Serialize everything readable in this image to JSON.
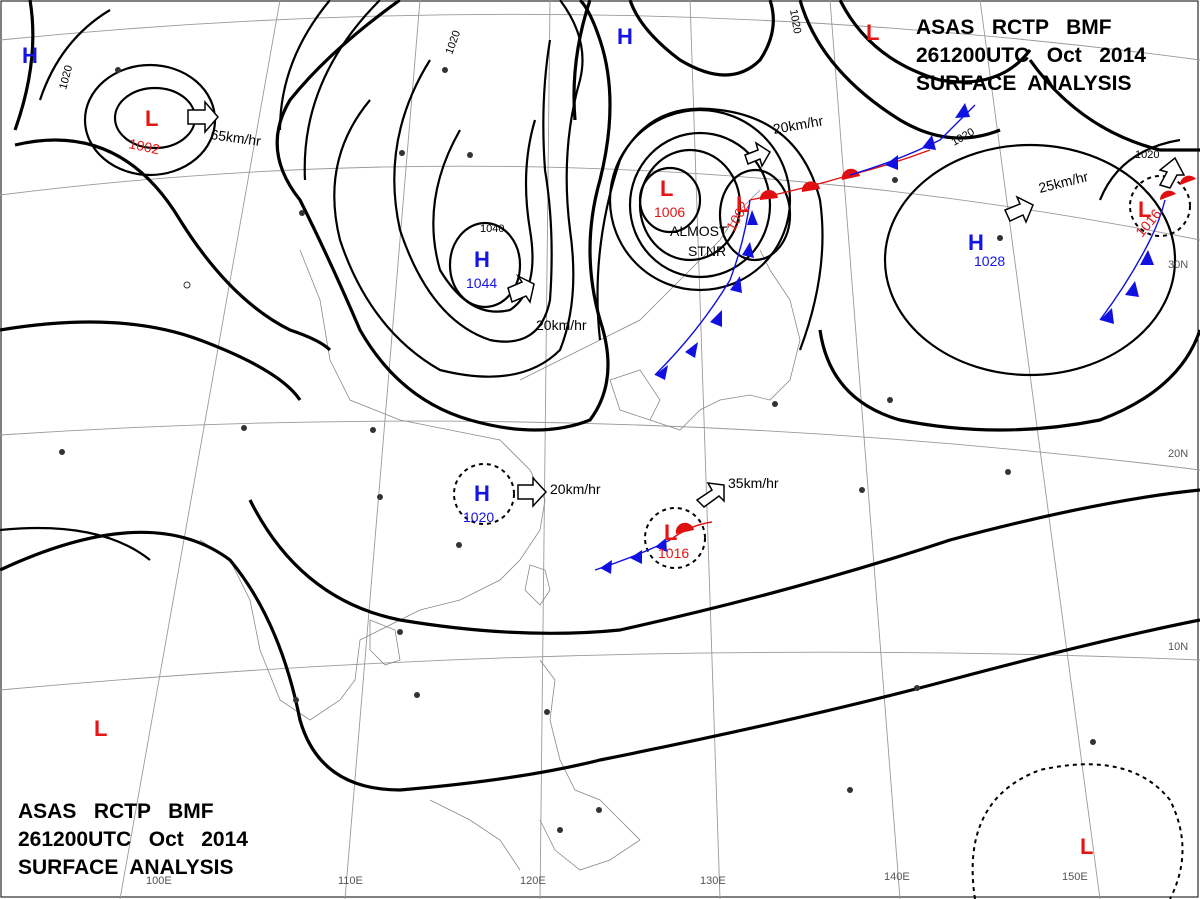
{
  "title_lines": [
    "ASAS   RCTP   BMF",
    "261200UTC   Oct   2014",
    "SURFACE  ANALYSIS"
  ],
  "pressure_systems": [
    {
      "type": "L",
      "value": "1002"
    },
    {
      "type": "H",
      "value": "1044"
    },
    {
      "type": "L",
      "value": "1006"
    },
    {
      "type": "L",
      "value": "1002"
    },
    {
      "type": "H",
      "value": "1028"
    },
    {
      "type": "L",
      "value": "1016"
    },
    {
      "type": "H",
      "value": "1020"
    },
    {
      "type": "L",
      "value": "1016"
    },
    {
      "type": "H",
      "value": ""
    },
    {
      "type": "H",
      "value": ""
    },
    {
      "type": "L",
      "value": ""
    },
    {
      "type": "L",
      "value": ""
    },
    {
      "type": "L",
      "value": ""
    }
  ],
  "movements": [
    "65km/hr",
    "20km/hr",
    "20km/hr",
    "25km/hr",
    "20km/hr",
    "35km/hr"
  ],
  "isobar_labels": [
    "1020",
    "1020",
    "1020",
    "1040",
    "1020",
    "1020"
  ],
  "annotation": [
    "ALMOST",
    "STNR"
  ],
  "lat_labels": [
    "30N",
    "20N",
    "10N"
  ],
  "lon_labels": [
    "100E",
    "110E",
    "120E",
    "130E",
    "140E",
    "150E"
  ],
  "colors": {
    "high": "#1414e6",
    "low": "#e61414",
    "cold_front": "#1010e0",
    "warm_front": "#e01010"
  }
}
